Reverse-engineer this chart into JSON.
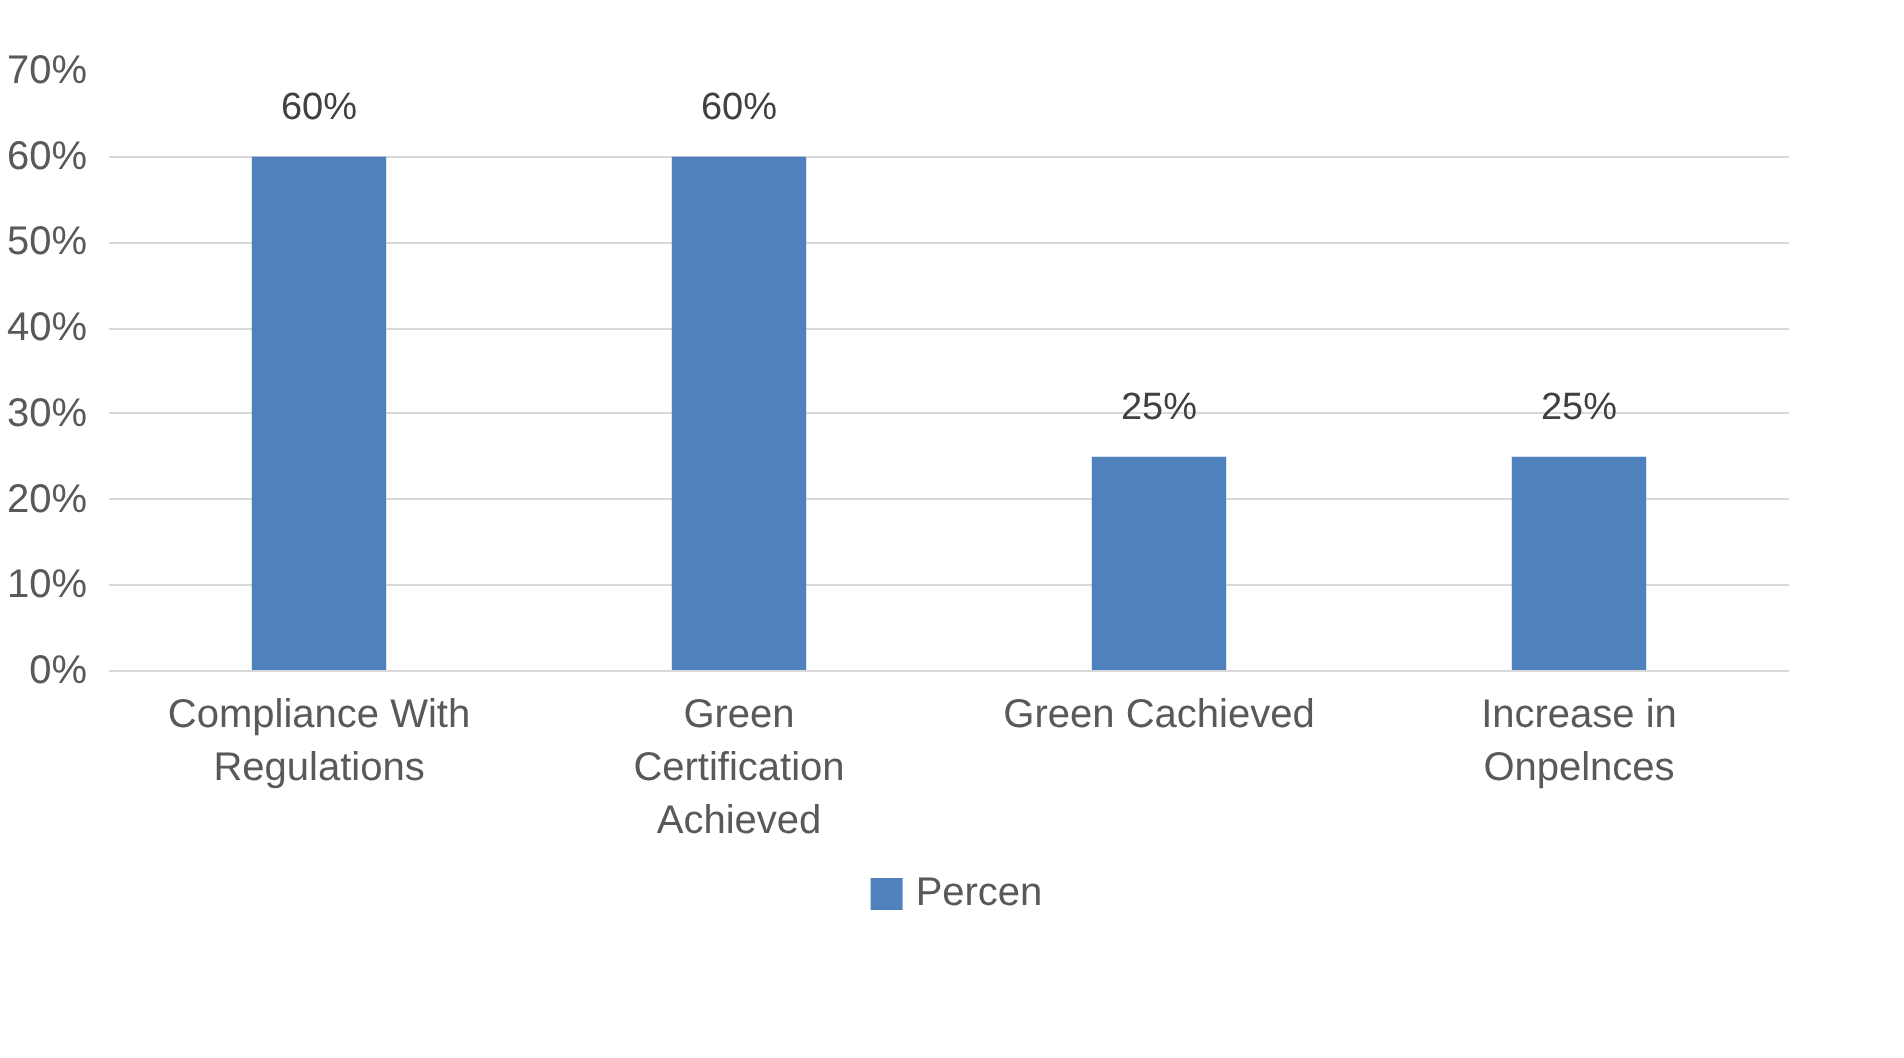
{
  "chart_data": {
    "type": "bar",
    "categories": [
      "Compliance With Regulations",
      "Green Certification Achieved",
      "Green Cachieved",
      "Increase in Onpelnces"
    ],
    "series": [
      {
        "name": "Percen",
        "color": "#4f81bd",
        "values": [
          60,
          60,
          25,
          25
        ],
        "value_labels": [
          "60%",
          "60%",
          "25%",
          "25%"
        ]
      }
    ],
    "ylim": [
      0,
      70
    ],
    "yticks": [
      {
        "value": 0,
        "label": "0%"
      },
      {
        "value": 10,
        "label": "10%"
      },
      {
        "value": 20,
        "label": "20%"
      },
      {
        "value": 30,
        "label": "30%"
      },
      {
        "value": 40,
        "label": "40%"
      },
      {
        "value": 50,
        "label": "50%"
      },
      {
        "value": 60,
        "label": "60%"
      },
      {
        "value": 70,
        "label": "70%"
      }
    ],
    "grid": "y",
    "legend": "bottom"
  }
}
